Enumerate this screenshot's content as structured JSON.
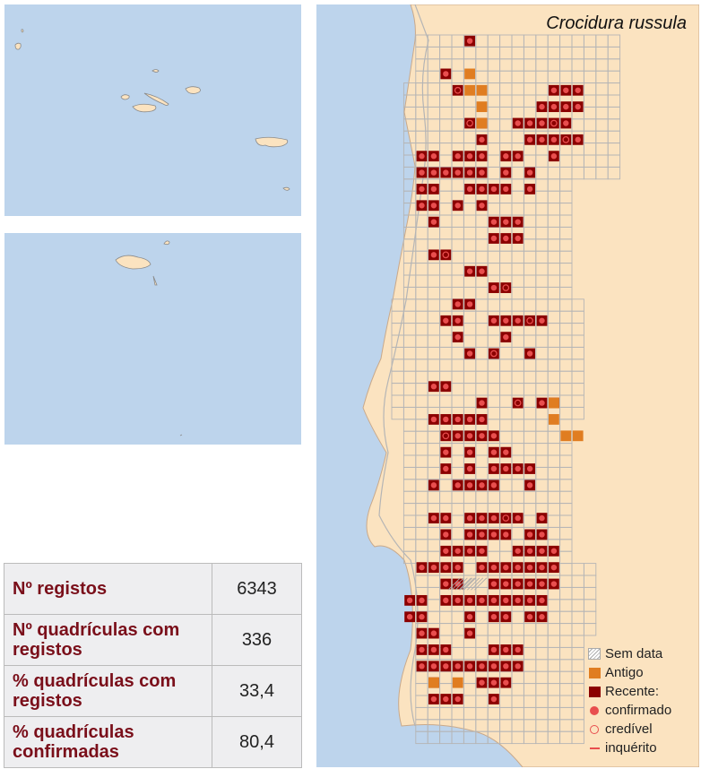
{
  "title": "Crocidura russula",
  "legend": {
    "no_date": "Sem data",
    "old": "Antigo",
    "recent": "Recente:",
    "confirmed": "confirmado",
    "credible": "credível",
    "survey": "inquérito"
  },
  "stats": [
    {
      "label": "Nº registos",
      "value": "6343"
    },
    {
      "label": "Nº quadrículas com registos",
      "value": "336"
    },
    {
      "label": "% quadrículas com registos",
      "value": "33,4"
    },
    {
      "label": "% quadrículas confirmadas",
      "value": "80,4"
    }
  ],
  "colors": {
    "sea": "#bdd4ec",
    "land": "#fbe3c0",
    "grid": "#b5b5b5",
    "recent": "#8b0000",
    "old": "#e07d21",
    "marker": "#e84e4e"
  },
  "map_data": {
    "grid_origin": "cell (col, row) index on a 10 km square grid; col 0 = westernmost cell",
    "recent_confirmed": [
      [
        4,
        2
      ],
      [
        6,
        0
      ],
      [
        5,
        3
      ],
      [
        13,
        3
      ],
      [
        14,
        3
      ],
      [
        15,
        3
      ],
      [
        12,
        4
      ],
      [
        13,
        4
      ],
      [
        14,
        4
      ],
      [
        15,
        4
      ],
      [
        6,
        5
      ],
      [
        7,
        5
      ],
      [
        10,
        5
      ],
      [
        11,
        5
      ],
      [
        12,
        5
      ],
      [
        13,
        5
      ],
      [
        14,
        5
      ],
      [
        7,
        6
      ],
      [
        11,
        6
      ],
      [
        12,
        6
      ],
      [
        13,
        6
      ],
      [
        14,
        6
      ],
      [
        15,
        6
      ],
      [
        2,
        7
      ],
      [
        3,
        7
      ],
      [
        5,
        7
      ],
      [
        6,
        7
      ],
      [
        7,
        7
      ],
      [
        9,
        7
      ],
      [
        10,
        7
      ],
      [
        13,
        7
      ],
      [
        2,
        8
      ],
      [
        3,
        8
      ],
      [
        4,
        8
      ],
      [
        5,
        8
      ],
      [
        6,
        8
      ],
      [
        7,
        8
      ],
      [
        9,
        8
      ],
      [
        11,
        8
      ],
      [
        2,
        9
      ],
      [
        3,
        9
      ],
      [
        6,
        9
      ],
      [
        7,
        9
      ],
      [
        8,
        9
      ],
      [
        9,
        9
      ],
      [
        11,
        9
      ],
      [
        2,
        10
      ],
      [
        3,
        10
      ],
      [
        5,
        10
      ],
      [
        7,
        10
      ],
      [
        3,
        11
      ],
      [
        8,
        11
      ],
      [
        9,
        11
      ],
      [
        10,
        11
      ],
      [
        8,
        12
      ],
      [
        9,
        12
      ],
      [
        10,
        12
      ],
      [
        3,
        13
      ],
      [
        4,
        13
      ],
      [
        6,
        14
      ],
      [
        7,
        14
      ],
      [
        8,
        15
      ],
      [
        9,
        15
      ],
      [
        5,
        16
      ],
      [
        6,
        16
      ],
      [
        4,
        17
      ],
      [
        5,
        17
      ],
      [
        8,
        17
      ],
      [
        9,
        17
      ],
      [
        10,
        17
      ],
      [
        11,
        17
      ],
      [
        12,
        17
      ],
      [
        5,
        18
      ],
      [
        9,
        18
      ],
      [
        6,
        19
      ],
      [
        8,
        19
      ],
      [
        11,
        19
      ],
      [
        3,
        21
      ],
      [
        4,
        21
      ],
      [
        7,
        22
      ],
      [
        10,
        22
      ],
      [
        12,
        22
      ],
      [
        13,
        22
      ],
      [
        3,
        23
      ],
      [
        4,
        23
      ],
      [
        5,
        23
      ],
      [
        6,
        23
      ],
      [
        7,
        23
      ],
      [
        4,
        24
      ],
      [
        5,
        24
      ],
      [
        6,
        24
      ],
      [
        7,
        24
      ],
      [
        8,
        24
      ],
      [
        4,
        25
      ],
      [
        6,
        25
      ],
      [
        8,
        25
      ],
      [
        9,
        25
      ],
      [
        4,
        26
      ],
      [
        6,
        26
      ],
      [
        8,
        26
      ],
      [
        9,
        26
      ],
      [
        10,
        26
      ],
      [
        11,
        26
      ],
      [
        3,
        27
      ],
      [
        5,
        27
      ],
      [
        6,
        27
      ],
      [
        7,
        27
      ],
      [
        8,
        27
      ],
      [
        11,
        27
      ],
      [
        3,
        29
      ],
      [
        4,
        29
      ],
      [
        6,
        29
      ],
      [
        7,
        29
      ],
      [
        8,
        29
      ],
      [
        9,
        29
      ],
      [
        10,
        29
      ],
      [
        12,
        29
      ],
      [
        4,
        30
      ],
      [
        6,
        30
      ],
      [
        7,
        30
      ],
      [
        8,
        30
      ],
      [
        9,
        30
      ],
      [
        11,
        30
      ],
      [
        12,
        30
      ],
      [
        4,
        31
      ],
      [
        5,
        31
      ],
      [
        6,
        31
      ],
      [
        7,
        31
      ],
      [
        10,
        31
      ],
      [
        11,
        31
      ],
      [
        12,
        31
      ],
      [
        13,
        31
      ],
      [
        2,
        32
      ],
      [
        3,
        32
      ],
      [
        4,
        32
      ],
      [
        5,
        32
      ],
      [
        7,
        32
      ],
      [
        8,
        32
      ],
      [
        9,
        32
      ],
      [
        10,
        32
      ],
      [
        11,
        32
      ],
      [
        12,
        32
      ],
      [
        13,
        32
      ],
      [
        4,
        33
      ],
      [
        5,
        33
      ],
      [
        8,
        33
      ],
      [
        9,
        33
      ],
      [
        10,
        33
      ],
      [
        11,
        33
      ],
      [
        12,
        33
      ],
      [
        13,
        33
      ],
      [
        1,
        34
      ],
      [
        2,
        34
      ],
      [
        4,
        34
      ],
      [
        5,
        34
      ],
      [
        6,
        34
      ],
      [
        7,
        34
      ],
      [
        8,
        34
      ],
      [
        9,
        34
      ],
      [
        10,
        34
      ],
      [
        11,
        34
      ],
      [
        12,
        34
      ],
      [
        1,
        35
      ],
      [
        2,
        35
      ],
      [
        6,
        35
      ],
      [
        8,
        35
      ],
      [
        9,
        35
      ],
      [
        11,
        35
      ],
      [
        12,
        35
      ],
      [
        2,
        36
      ],
      [
        3,
        36
      ],
      [
        6,
        36
      ],
      [
        2,
        37
      ],
      [
        3,
        37
      ],
      [
        4,
        37
      ],
      [
        8,
        37
      ],
      [
        9,
        37
      ],
      [
        10,
        37
      ],
      [
        2,
        38
      ],
      [
        3,
        38
      ],
      [
        4,
        38
      ],
      [
        5,
        38
      ],
      [
        6,
        38
      ],
      [
        7,
        38
      ],
      [
        8,
        38
      ],
      [
        9,
        38
      ],
      [
        10,
        38
      ],
      [
        3,
        39
      ],
      [
        7,
        39
      ],
      [
        8,
        39
      ],
      [
        9,
        39
      ],
      [
        3,
        40
      ],
      [
        4,
        40
      ],
      [
        5,
        40
      ],
      [
        8,
        40
      ]
    ],
    "recent_credible": [
      [
        5,
        3
      ],
      [
        6,
        5
      ],
      [
        11,
        4
      ],
      [
        13,
        5
      ],
      [
        14,
        6
      ],
      [
        4,
        13
      ],
      [
        3,
        14
      ],
      [
        9,
        15
      ],
      [
        11,
        17
      ],
      [
        6,
        18
      ],
      [
        5,
        19
      ],
      [
        8,
        19
      ],
      [
        10,
        22
      ],
      [
        11,
        23
      ],
      [
        12,
        23
      ],
      [
        4,
        24
      ],
      [
        5,
        26
      ],
      [
        9,
        29
      ],
      [
        6,
        32
      ],
      [
        3,
        34
      ],
      [
        6,
        37
      ],
      [
        7,
        40
      ],
      [
        10,
        40
      ]
    ],
    "old": [
      [
        6,
        2
      ],
      [
        6,
        3
      ],
      [
        7,
        3
      ],
      [
        7,
        4
      ],
      [
        7,
        5
      ],
      [
        13,
        22
      ],
      [
        13,
        23
      ],
      [
        14,
        24
      ],
      [
        15,
        24
      ],
      [
        3,
        39
      ],
      [
        5,
        39
      ]
    ],
    "no_date": [
      [
        5,
        33
      ],
      [
        6,
        33
      ]
    ]
  }
}
